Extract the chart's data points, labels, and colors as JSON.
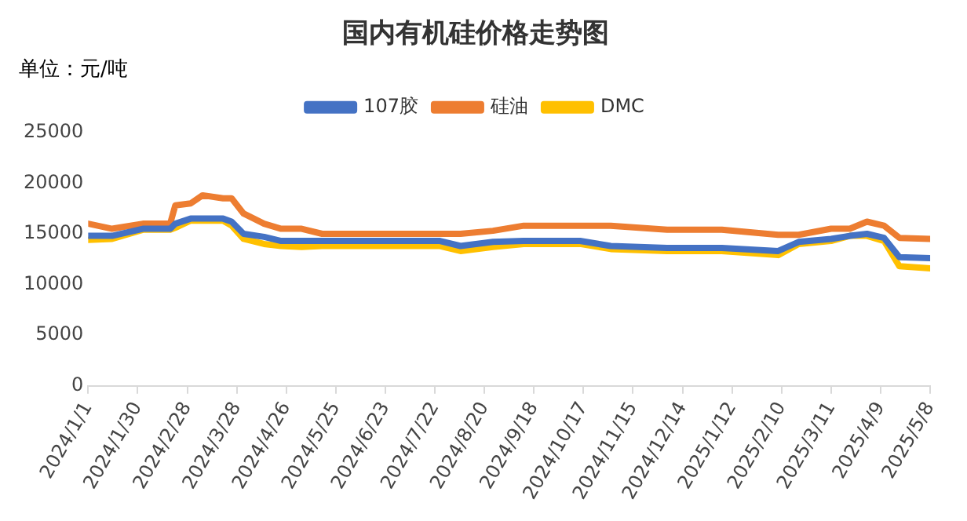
{
  "chart_data": {
    "type": "line",
    "title": "国内有机硅价格走势图",
    "annotations": [
      "单位：元/吨"
    ],
    "x": [
      "2024-01-01",
      "2024-01-15",
      "2024-02-02",
      "2024-02-18",
      "2024-02-21",
      "2024-03-01",
      "2024-03-08",
      "2024-03-20",
      "2024-03-25",
      "2024-04-01",
      "2024-04-13",
      "2024-04-23",
      "2024-05-05",
      "2024-05-17",
      "2024-06-21",
      "2024-07-25",
      "2024-08-06",
      "2024-08-25",
      "2024-09-12",
      "2024-10-15",
      "2024-11-02",
      "2024-12-05",
      "2025-01-06",
      "2025-02-08",
      "2025-02-20",
      "2025-03-11",
      "2025-03-22",
      "2025-04-01",
      "2025-04-11",
      "2025-04-20",
      "2025-05-08"
    ],
    "series": [
      {
        "name": "107胶",
        "color": "#4472c4",
        "values": [
          14800,
          14800,
          15500,
          15500,
          16000,
          16500,
          16500,
          16500,
          16200,
          15000,
          14700,
          14300,
          14300,
          14300,
          14300,
          14300,
          13800,
          14200,
          14300,
          14300,
          13800,
          13600,
          13600,
          13300,
          14200,
          14500,
          14800,
          15000,
          14600,
          12700,
          12600
        ]
      },
      {
        "name": "硅油",
        "color": "#ed7d31",
        "values": [
          16000,
          15500,
          16000,
          16000,
          17800,
          18000,
          18800,
          18500,
          18500,
          17000,
          16000,
          15500,
          15500,
          15000,
          15000,
          15000,
          15000,
          15300,
          15800,
          15800,
          15800,
          15400,
          15400,
          14900,
          14900,
          15500,
          15500,
          16200,
          15800,
          14600,
          14500
        ]
      },
      {
        "name": "DMC",
        "color": "#ffc000",
        "values": [
          14400,
          14500,
          15400,
          15400,
          15600,
          16300,
          16300,
          16300,
          15800,
          14500,
          14000,
          13800,
          13700,
          13800,
          13800,
          13800,
          13300,
          13700,
          14000,
          14000,
          13500,
          13300,
          13300,
          12900,
          14000,
          14300,
          14800,
          14800,
          14300,
          11800,
          11600
        ]
      }
    ],
    "xlim": [
      "2024-01-01",
      "2025-05-08"
    ],
    "xticks": [
      {
        "value": "2024-01-01",
        "label": "2024/1/1"
      },
      {
        "value": "2024-01-30",
        "label": "2024/1/30"
      },
      {
        "value": "2024-02-28",
        "label": "2024/2/28"
      },
      {
        "value": "2024-03-28",
        "label": "2024/3/28"
      },
      {
        "value": "2024-04-26",
        "label": "2024/4/26"
      },
      {
        "value": "2024-05-25",
        "label": "2024/5/25"
      },
      {
        "value": "2024-06-23",
        "label": "2024/6/23"
      },
      {
        "value": "2024-07-22",
        "label": "2024/7/22"
      },
      {
        "value": "2024-08-20",
        "label": "2024/8/20"
      },
      {
        "value": "2024-09-18",
        "label": "2024/9/18"
      },
      {
        "value": "2024-10-17",
        "label": "2024/10/17"
      },
      {
        "value": "2024-11-15",
        "label": "2024/11/15"
      },
      {
        "value": "2024-12-14",
        "label": "2024/12/14"
      },
      {
        "value": "2025-01-12",
        "label": "2025/1/12"
      },
      {
        "value": "2025-02-10",
        "label": "2025/2/10"
      },
      {
        "value": "2025-03-11",
        "label": "2025/3/11"
      },
      {
        "value": "2025-04-09",
        "label": "2025/4/9"
      },
      {
        "value": "2025-05-08",
        "label": "2025/5/8"
      }
    ],
    "ylim": [
      0,
      25000
    ],
    "yticks": [
      0,
      5000,
      10000,
      15000,
      20000,
      25000
    ],
    "grid": false,
    "legend": "top",
    "marker": "none",
    "line_style": "solid"
  }
}
